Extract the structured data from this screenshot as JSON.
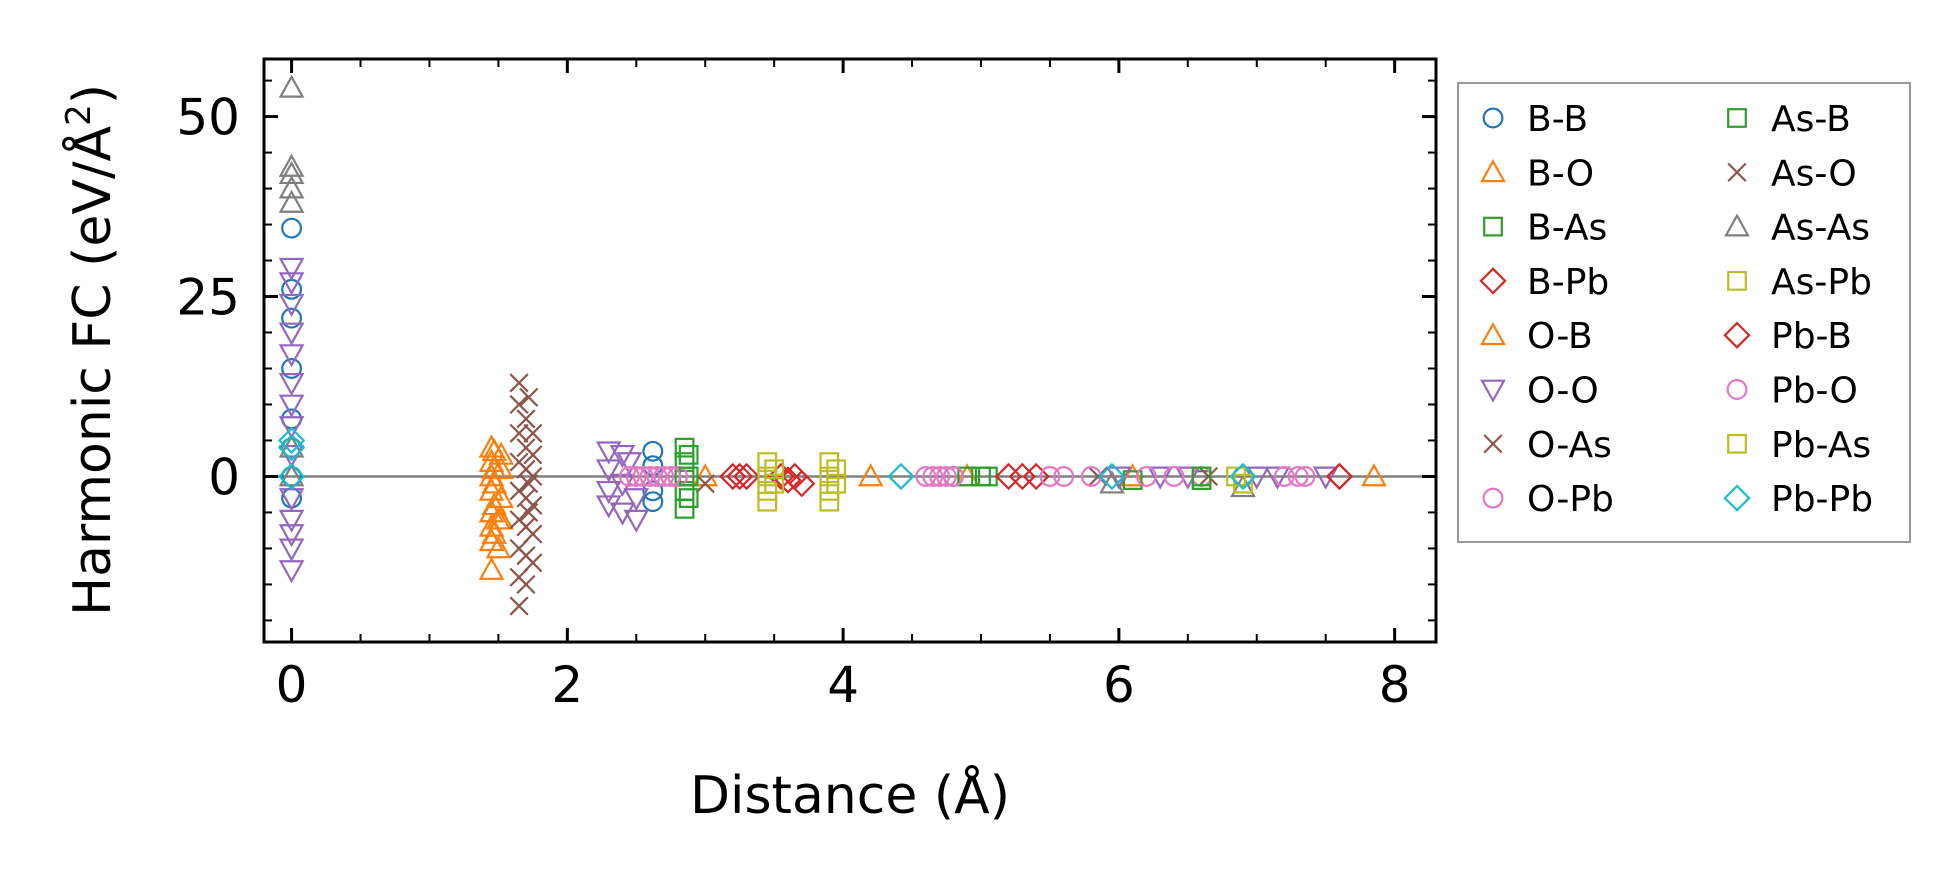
{
  "chart_data": {
    "type": "scatter",
    "title": "",
    "xlabel": "Distance (Å)",
    "ylabel_prefix": "Harmonic FC (eV/Å",
    "ylabel_sup": "2",
    "ylabel_suffix": ")",
    "xlim": [
      -0.2,
      8.3
    ],
    "ylim": [
      -23,
      58
    ],
    "xticks": [
      0,
      2,
      4,
      6,
      8
    ],
    "xtick_labels": [
      "0",
      "2",
      "4",
      "6",
      "8"
    ],
    "yticks": [
      0,
      25,
      50
    ],
    "ytick_labels": [
      "0",
      "25",
      "50"
    ],
    "zero_line": true,
    "legend_position": "outside-right",
    "series": [
      {
        "name": "B-B",
        "marker": "circle",
        "color": "#1f77b4",
        "points": [
          [
            0,
            34.5
          ],
          [
            0,
            26
          ],
          [
            0,
            22
          ],
          [
            0,
            15
          ],
          [
            0,
            8
          ],
          [
            0,
            4
          ],
          [
            0,
            0
          ],
          [
            0,
            -3
          ],
          [
            2.62,
            3.5
          ],
          [
            2.62,
            1.5
          ],
          [
            2.62,
            -2
          ],
          [
            2.62,
            -3.5
          ],
          [
            4.8,
            0
          ],
          [
            6.9,
            0
          ]
        ]
      },
      {
        "name": "B-O",
        "marker": "triangle-up",
        "color": "#ff7f0e",
        "points": [
          [
            1.45,
            4
          ],
          [
            1.45,
            2
          ],
          [
            1.45,
            0
          ],
          [
            1.45,
            -2
          ],
          [
            1.45,
            -5
          ],
          [
            1.45,
            -7
          ],
          [
            1.45,
            -9
          ],
          [
            1.45,
            -13
          ],
          [
            1.52,
            3
          ],
          [
            1.52,
            1
          ],
          [
            1.52,
            -3
          ],
          [
            1.52,
            -6
          ],
          [
            3.0,
            0
          ],
          [
            4.2,
            0
          ],
          [
            4.9,
            0
          ],
          [
            6.1,
            0
          ],
          [
            7.85,
            0
          ]
        ]
      },
      {
        "name": "B-As",
        "marker": "square",
        "color": "#2ca02c",
        "points": [
          [
            2.85,
            4
          ],
          [
            2.85,
            2
          ],
          [
            2.85,
            0
          ],
          [
            2.85,
            -2
          ],
          [
            2.85,
            -4.5
          ],
          [
            4.9,
            0
          ],
          [
            5.05,
            0
          ],
          [
            6.1,
            -0.5
          ],
          [
            6.6,
            -0.5
          ]
        ]
      },
      {
        "name": "B-Pb",
        "marker": "diamond",
        "color": "#d62728",
        "points": [
          [
            3.2,
            0
          ],
          [
            3.3,
            0
          ],
          [
            3.55,
            0
          ],
          [
            3.65,
            0
          ],
          [
            3.7,
            -1
          ],
          [
            5.2,
            0
          ],
          [
            5.4,
            0
          ],
          [
            7.6,
            0
          ]
        ]
      },
      {
        "name": "O-B",
        "marker": "triangle-up",
        "color": "#ff7f0e",
        "points": [
          [
            1.47,
            3.5
          ],
          [
            1.47,
            1
          ],
          [
            1.47,
            -1
          ],
          [
            1.47,
            -4
          ],
          [
            1.47,
            -8
          ],
          [
            1.5,
            -10
          ],
          [
            1.5,
            -6
          ]
        ]
      },
      {
        "name": "O-O",
        "marker": "triangle-down",
        "color": "#9467bd",
        "points": [
          [
            0,
            29
          ],
          [
            0,
            27
          ],
          [
            0,
            24
          ],
          [
            0,
            20
          ],
          [
            0,
            17
          ],
          [
            0,
            13
          ],
          [
            0,
            10
          ],
          [
            0,
            7
          ],
          [
            0,
            3
          ],
          [
            0,
            -3
          ],
          [
            0,
            -6
          ],
          [
            0,
            -8
          ],
          [
            0,
            -10
          ],
          [
            0,
            -13
          ],
          [
            2.3,
            3.5
          ],
          [
            2.3,
            1
          ],
          [
            2.3,
            -2
          ],
          [
            2.3,
            -4
          ],
          [
            2.4,
            3
          ],
          [
            2.4,
            -1
          ],
          [
            2.4,
            -5
          ],
          [
            2.45,
            2
          ],
          [
            2.5,
            -3
          ],
          [
            2.5,
            -6
          ],
          [
            6.0,
            0
          ],
          [
            6.3,
            0
          ],
          [
            6.5,
            0
          ],
          [
            7.0,
            0
          ],
          [
            7.15,
            0
          ],
          [
            7.5,
            0
          ]
        ]
      },
      {
        "name": "O-As",
        "marker": "x",
        "color": "#8c564b",
        "points": [
          [
            1.65,
            13
          ],
          [
            1.65,
            10
          ],
          [
            1.65,
            6
          ],
          [
            1.65,
            2
          ],
          [
            1.65,
            -2
          ],
          [
            1.65,
            -6
          ],
          [
            1.65,
            -10
          ],
          [
            1.65,
            -14
          ],
          [
            1.65,
            -18
          ],
          [
            1.75,
            6
          ],
          [
            1.75,
            3
          ],
          [
            1.75,
            0
          ],
          [
            1.75,
            -4
          ],
          [
            1.75,
            -8
          ],
          [
            1.75,
            -12
          ],
          [
            3.0,
            -1
          ],
          [
            5.85,
            0
          ],
          [
            6.65,
            0
          ]
        ]
      },
      {
        "name": "O-Pb",
        "marker": "circle",
        "color": "#e377c2",
        "points": [
          [
            2.45,
            0
          ],
          [
            2.55,
            0
          ],
          [
            2.6,
            0
          ],
          [
            2.7,
            0
          ],
          [
            2.8,
            0
          ],
          [
            4.6,
            0
          ],
          [
            4.7,
            0
          ],
          [
            4.75,
            0
          ],
          [
            5.5,
            0
          ],
          [
            5.8,
            0
          ],
          [
            6.2,
            0
          ],
          [
            6.6,
            0
          ],
          [
            7.2,
            0
          ],
          [
            7.3,
            0
          ]
        ]
      },
      {
        "name": "As-B",
        "marker": "square",
        "color": "#2ca02c",
        "points": [
          [
            2.88,
            3
          ],
          [
            2.88,
            0
          ],
          [
            2.88,
            -3
          ],
          [
            5.0,
            0
          ],
          [
            6.6,
            0
          ]
        ]
      },
      {
        "name": "As-O",
        "marker": "x",
        "color": "#8c564b",
        "points": [
          [
            1.7,
            8
          ],
          [
            1.7,
            4
          ],
          [
            1.7,
            1
          ],
          [
            1.7,
            -3
          ],
          [
            1.7,
            -7
          ],
          [
            1.7,
            -11
          ],
          [
            1.7,
            -15
          ],
          [
            1.72,
            11
          ],
          [
            1.72,
            -1
          ],
          [
            1.72,
            -5
          ]
        ]
      },
      {
        "name": "As-As",
        "marker": "triangle-up",
        "color": "#7f7f7f",
        "points": [
          [
            0,
            54
          ],
          [
            0,
            43
          ],
          [
            0,
            42
          ],
          [
            0,
            40
          ],
          [
            0,
            38
          ],
          [
            0,
            4
          ],
          [
            0,
            0
          ],
          [
            5.95,
            -1
          ],
          [
            6.9,
            -1.5
          ]
        ]
      },
      {
        "name": "As-Pb",
        "marker": "square",
        "color": "#bcbd22",
        "points": [
          [
            3.45,
            2
          ],
          [
            3.45,
            0
          ],
          [
            3.45,
            -2
          ],
          [
            3.45,
            -3.5
          ],
          [
            3.9,
            2
          ],
          [
            3.9,
            0
          ],
          [
            3.9,
            -2
          ],
          [
            3.9,
            -3.5
          ],
          [
            6.85,
            0
          ],
          [
            6.9,
            -1
          ]
        ]
      },
      {
        "name": "Pb-B",
        "marker": "diamond",
        "color": "#d62728",
        "points": [
          [
            3.25,
            0
          ],
          [
            3.6,
            -0.5
          ],
          [
            5.3,
            0
          ],
          [
            7.6,
            0
          ]
        ]
      },
      {
        "name": "Pb-O",
        "marker": "circle",
        "color": "#e377c2",
        "points": [
          [
            2.5,
            0
          ],
          [
            2.65,
            0
          ],
          [
            2.75,
            0
          ],
          [
            4.65,
            0
          ],
          [
            4.8,
            0
          ],
          [
            5.6,
            0
          ],
          [
            6.4,
            0
          ],
          [
            7.35,
            0
          ]
        ]
      },
      {
        "name": "Pb-As",
        "marker": "square",
        "color": "#bcbd22",
        "points": [
          [
            3.5,
            1
          ],
          [
            3.5,
            -1
          ],
          [
            3.95,
            1
          ],
          [
            3.95,
            -1
          ]
        ]
      },
      {
        "name": "Pb-Pb",
        "marker": "diamond",
        "color": "#17becf",
        "points": [
          [
            0,
            5
          ],
          [
            0,
            4
          ],
          [
            0,
            0
          ],
          [
            4.42,
            0
          ],
          [
            5.95,
            0
          ],
          [
            6.9,
            0
          ]
        ]
      }
    ]
  }
}
